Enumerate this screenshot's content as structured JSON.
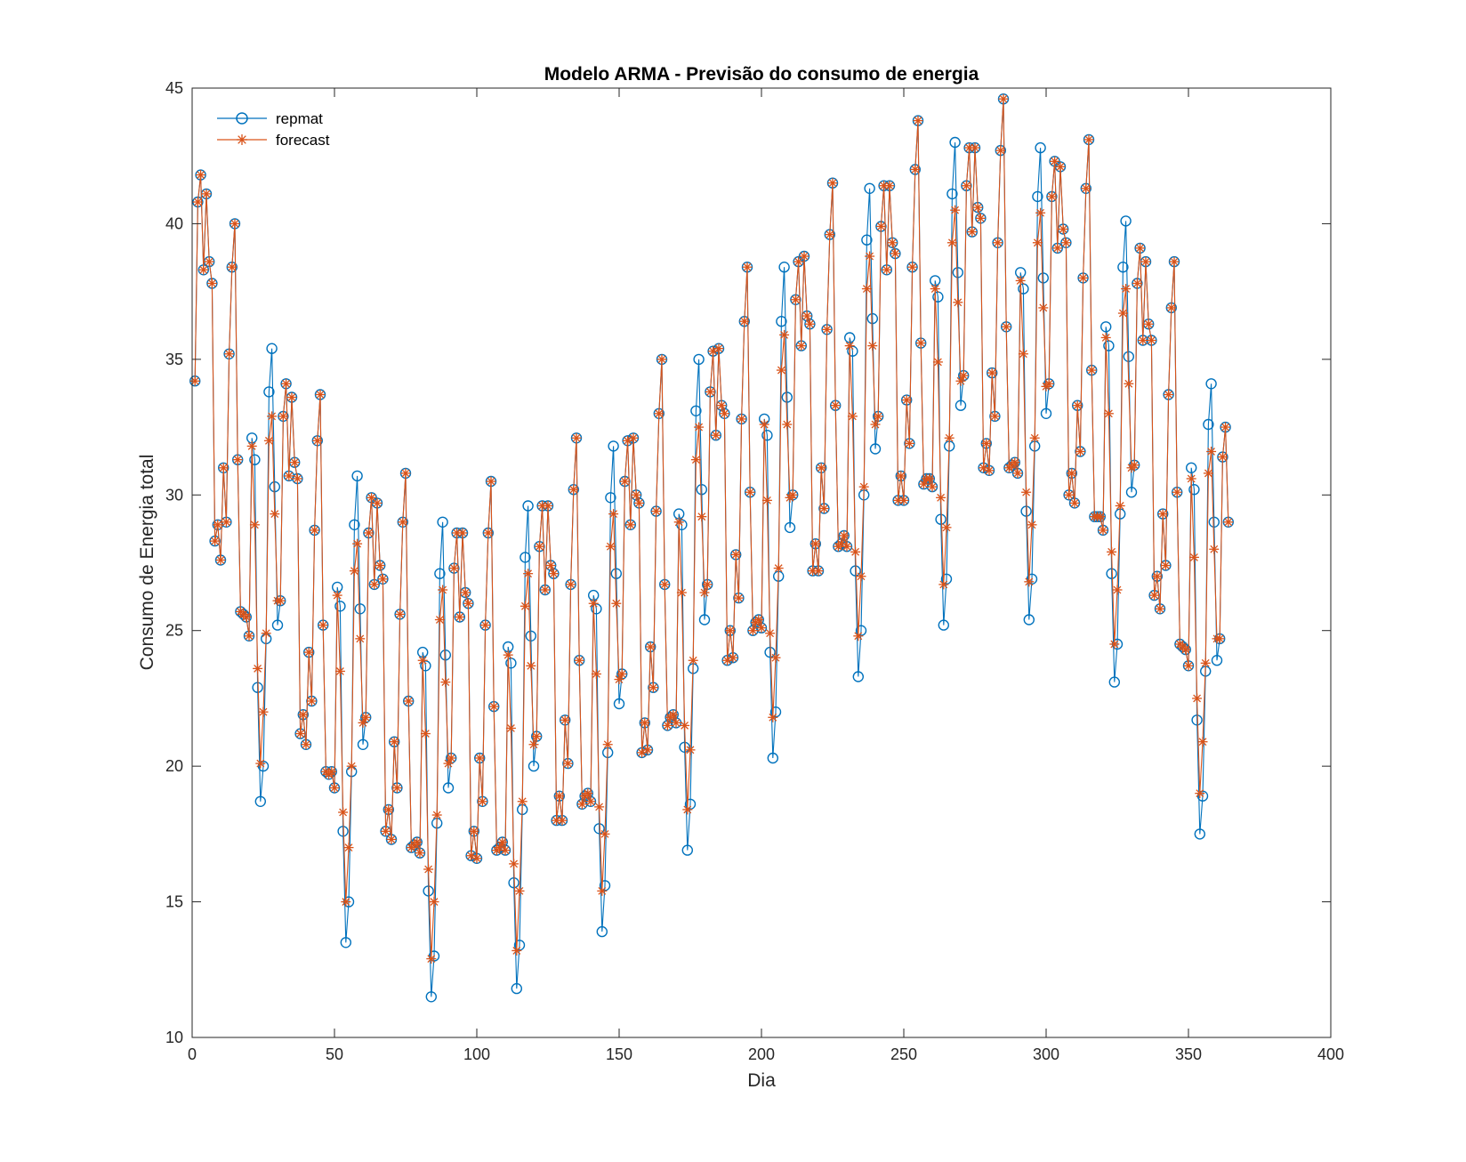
{
  "chart_data": {
    "type": "line",
    "title": "Modelo ARMA - Previsão do consumo de energia",
    "xlabel": "Dia",
    "ylabel": "Consumo de Energia total",
    "xlim": [
      0,
      400
    ],
    "ylim": [
      10,
      45
    ],
    "xticks": [
      0,
      50,
      100,
      150,
      200,
      250,
      300,
      350,
      400
    ],
    "yticks": [
      10,
      15,
      20,
      25,
      30,
      35,
      40,
      45
    ],
    "grid": false,
    "legend_position": "top-left",
    "series": [
      {
        "name": "repmat",
        "color": "#0072BD",
        "marker": "circle",
        "x_start": 1,
        "values": [
          34.2,
          40.8,
          41.8,
          38.3,
          41.1,
          38.6,
          37.8,
          28.3,
          28.9,
          27.6,
          31.0,
          29.0,
          35.2,
          38.4,
          40.0,
          31.3,
          25.7,
          25.6,
          25.5,
          24.8,
          32.1,
          31.3,
          22.9,
          18.7,
          20.0,
          24.7,
          33.8,
          35.4,
          30.3,
          25.2,
          26.1,
          32.9,
          34.1,
          30.7,
          33.6,
          31.2,
          30.6,
          21.2,
          21.9,
          20.8,
          24.2,
          22.4,
          28.7,
          32.0,
          33.7,
          25.2,
          19.8,
          19.7,
          19.8,
          19.2,
          26.6,
          25.9,
          17.6,
          13.5,
          15.0,
          19.8,
          28.9,
          30.7,
          25.8,
          20.8,
          21.8,
          28.6,
          29.9,
          26.7,
          29.7,
          27.4,
          26.9,
          17.6,
          18.4,
          17.3,
          20.9,
          19.2,
          25.6,
          29.0,
          30.8,
          22.4,
          17.0,
          17.1,
          17.2,
          16.8,
          24.2,
          23.7,
          15.4,
          11.5,
          13.0,
          17.9,
          27.1,
          29.0,
          24.1,
          19.2,
          20.3,
          27.3,
          28.6,
          25.5,
          28.6,
          26.4,
          26.0,
          16.7,
          17.6,
          16.6,
          20.3,
          18.7,
          25.2,
          28.6,
          30.5,
          22.2,
          16.9,
          17.0,
          17.2,
          16.9,
          24.4,
          23.8,
          15.7,
          11.8,
          13.4,
          18.4,
          27.7,
          29.6,
          24.8,
          20.0,
          21.1,
          28.1,
          29.6,
          26.5,
          29.6,
          27.4,
          27.1,
          18.0,
          18.9,
          18.0,
          21.7,
          20.1,
          26.7,
          30.2,
          32.1,
          23.9,
          18.6,
          18.9,
          19.0,
          18.7,
          26.3,
          25.8,
          17.7,
          13.9,
          15.6,
          20.5,
          29.9,
          31.8,
          27.1,
          22.3,
          23.4,
          30.5,
          32.0,
          28.9,
          32.1,
          30.0,
          29.7,
          20.5,
          21.6,
          20.6,
          24.4,
          22.9,
          29.4,
          33.0,
          35.0,
          26.7,
          21.5,
          21.8,
          21.9,
          21.6,
          29.3,
          28.9,
          20.7,
          16.9,
          18.6,
          23.6,
          33.1,
          35.0,
          30.2,
          25.4,
          26.7,
          33.8,
          35.3,
          32.2,
          35.4,
          33.3,
          33.0,
          23.9,
          25.0,
          24.0,
          27.8,
          26.2,
          32.8,
          36.4,
          38.4,
          30.1,
          25.0,
          25.3,
          25.4,
          25.1,
          32.8,
          32.2,
          24.2,
          20.3,
          22.0,
          27.0,
          36.4,
          38.4,
          33.6,
          28.8,
          30.0,
          37.2,
          38.6,
          35.5,
          38.8,
          36.6,
          36.3,
          27.2,
          28.2,
          27.2,
          31.0,
          29.5,
          36.1,
          39.6,
          41.5,
          33.3,
          28.1,
          28.2,
          28.5,
          28.1,
          35.8,
          35.3,
          27.2,
          23.3,
          25.0,
          30.0,
          39.4,
          41.3,
          36.5,
          31.7,
          32.9,
          39.9,
          41.4,
          38.3,
          41.4,
          39.3,
          38.9,
          29.8,
          30.7,
          29.8,
          33.5,
          31.9,
          38.4,
          42.0,
          43.8,
          35.6,
          30.4,
          30.6,
          30.6,
          30.3,
          37.9,
          37.3,
          29.1,
          25.2,
          26.9,
          31.8,
          41.1,
          43.0,
          38.2,
          33.3,
          34.4,
          41.4,
          42.8,
          39.7,
          42.8,
          40.6,
          40.2,
          31.0,
          31.9,
          30.9,
          34.5,
          32.9,
          39.3,
          42.7,
          44.6,
          36.2,
          31.0,
          31.1,
          31.2,
          30.8,
          38.2,
          37.6,
          29.4,
          25.4,
          26.9,
          31.8,
          41.0,
          42.8,
          38.0,
          33.0,
          34.1,
          41.0,
          42.3,
          39.1,
          42.1,
          39.8,
          39.3,
          30.0,
          30.8,
          29.7,
          33.3,
          31.6,
          38.0,
          41.3,
          43.1,
          34.6,
          29.2,
          29.2,
          29.2,
          28.7,
          36.2,
          35.5,
          27.1,
          23.1,
          24.5,
          29.3,
          38.4,
          40.1,
          35.1,
          30.1,
          31.1,
          37.8,
          39.1,
          35.7,
          38.6,
          36.3,
          35.7,
          26.3,
          27.0,
          25.8,
          29.3,
          27.4,
          33.7,
          36.9,
          38.6,
          30.1,
          24.5,
          24.4,
          24.3,
          23.7,
          31.0,
          30.2,
          21.7,
          17.5,
          18.9,
          23.5,
          32.6,
          34.1,
          29.0,
          23.9,
          24.7,
          31.4,
          32.5,
          29.0
        ]
      },
      {
        "name": "forecast",
        "color": "#D95319",
        "marker": "asterisk",
        "x_start": 1,
        "values": [
          34.2,
          40.8,
          41.8,
          38.3,
          41.1,
          38.6,
          37.8,
          28.3,
          28.9,
          27.6,
          31.0,
          29.0,
          35.2,
          38.4,
          40.0,
          31.3,
          25.7,
          25.6,
          25.5,
          24.8,
          31.8,
          28.9,
          23.6,
          20.1,
          22.0,
          24.9,
          32.0,
          32.9,
          29.3,
          26.1,
          26.1,
          32.9,
          34.1,
          30.7,
          33.6,
          31.2,
          30.6,
          21.2,
          21.9,
          20.8,
          24.2,
          22.4,
          28.7,
          32.0,
          33.7,
          25.2,
          19.8,
          19.7,
          19.8,
          19.2,
          26.3,
          23.5,
          18.3,
          15.0,
          17.0,
          20.0,
          27.2,
          28.2,
          24.7,
          21.6,
          21.8,
          28.6,
          29.9,
          26.7,
          29.7,
          27.4,
          26.9,
          17.6,
          18.4,
          17.3,
          20.9,
          19.2,
          25.6,
          29.0,
          30.8,
          22.4,
          17.0,
          17.1,
          17.2,
          16.8,
          23.9,
          21.2,
          16.2,
          12.9,
          15.0,
          18.2,
          25.4,
          26.5,
          23.1,
          20.1,
          20.3,
          27.3,
          28.6,
          25.5,
          28.6,
          26.4,
          26.0,
          16.7,
          17.6,
          16.6,
          20.3,
          18.7,
          25.2,
          28.6,
          30.5,
          22.2,
          16.9,
          17.0,
          17.2,
          16.9,
          24.1,
          21.4,
          16.4,
          13.2,
          15.4,
          18.7,
          25.9,
          27.1,
          23.7,
          20.8,
          21.1,
          28.1,
          29.6,
          26.5,
          29.6,
          27.4,
          27.1,
          18.0,
          18.9,
          18.0,
          21.7,
          20.1,
          26.7,
          30.2,
          32.1,
          23.9,
          18.6,
          18.9,
          19.0,
          18.7,
          26.0,
          23.4,
          18.5,
          15.4,
          17.5,
          20.8,
          28.1,
          29.3,
          26.0,
          23.2,
          23.4,
          30.5,
          32.0,
          28.9,
          32.1,
          30.0,
          29.7,
          20.5,
          21.6,
          20.6,
          24.4,
          22.9,
          29.4,
          33.0,
          35.0,
          26.7,
          21.5,
          21.8,
          21.9,
          21.6,
          29.0,
          26.4,
          21.5,
          18.4,
          20.6,
          23.9,
          31.3,
          32.5,
          29.2,
          26.4,
          26.7,
          33.8,
          35.3,
          32.2,
          35.4,
          33.3,
          33.0,
          23.9,
          25.0,
          24.0,
          27.8,
          26.2,
          32.8,
          36.4,
          38.4,
          30.1,
          25.0,
          25.3,
          25.4,
          25.1,
          32.6,
          29.8,
          24.9,
          21.8,
          24.0,
          27.3,
          34.6,
          35.9,
          32.6,
          29.9,
          30.0,
          37.2,
          38.6,
          35.5,
          38.8,
          36.6,
          36.3,
          27.2,
          28.2,
          27.2,
          31.0,
          29.5,
          36.1,
          39.6,
          41.5,
          33.3,
          28.1,
          28.2,
          28.5,
          28.1,
          35.5,
          32.9,
          27.9,
          24.8,
          27.0,
          30.3,
          37.6,
          38.8,
          35.5,
          32.6,
          32.9,
          39.9,
          41.4,
          38.3,
          41.4,
          39.3,
          38.9,
          29.8,
          30.7,
          29.8,
          33.5,
          31.9,
          38.4,
          42.0,
          43.8,
          35.6,
          30.4,
          30.6,
          30.6,
          30.3,
          37.6,
          34.9,
          29.9,
          26.7,
          28.8,
          32.1,
          39.3,
          40.5,
          37.1,
          34.2,
          34.4,
          41.4,
          42.8,
          39.7,
          42.8,
          40.6,
          40.2,
          31.0,
          31.9,
          30.9,
          34.5,
          32.9,
          39.3,
          42.7,
          44.6,
          36.2,
          31.0,
          31.1,
          31.2,
          30.8,
          37.9,
          35.2,
          30.1,
          26.8,
          28.9,
          32.1,
          39.3,
          40.4,
          36.9,
          34.0,
          34.1,
          41.0,
          42.3,
          39.1,
          42.1,
          39.8,
          39.3,
          30.0,
          30.8,
          29.7,
          33.3,
          31.6,
          38.0,
          41.3,
          43.1,
          34.6,
          29.2,
          29.2,
          29.2,
          28.7,
          35.8,
          33.0,
          27.9,
          24.5,
          26.5,
          29.6,
          36.7,
          37.6,
          34.1,
          31.0,
          31.1,
          37.8,
          39.1,
          35.7,
          38.6,
          36.3,
          35.7,
          26.3,
          27.0,
          25.8,
          29.3,
          27.4,
          33.7,
          36.9,
          38.6,
          30.1,
          24.5,
          24.4,
          24.3,
          23.7,
          30.6,
          27.7,
          22.5,
          19.0,
          20.9,
          23.8,
          30.8,
          31.6,
          28.0,
          24.7,
          24.7,
          31.4,
          32.5,
          29.0
        ]
      }
    ]
  }
}
